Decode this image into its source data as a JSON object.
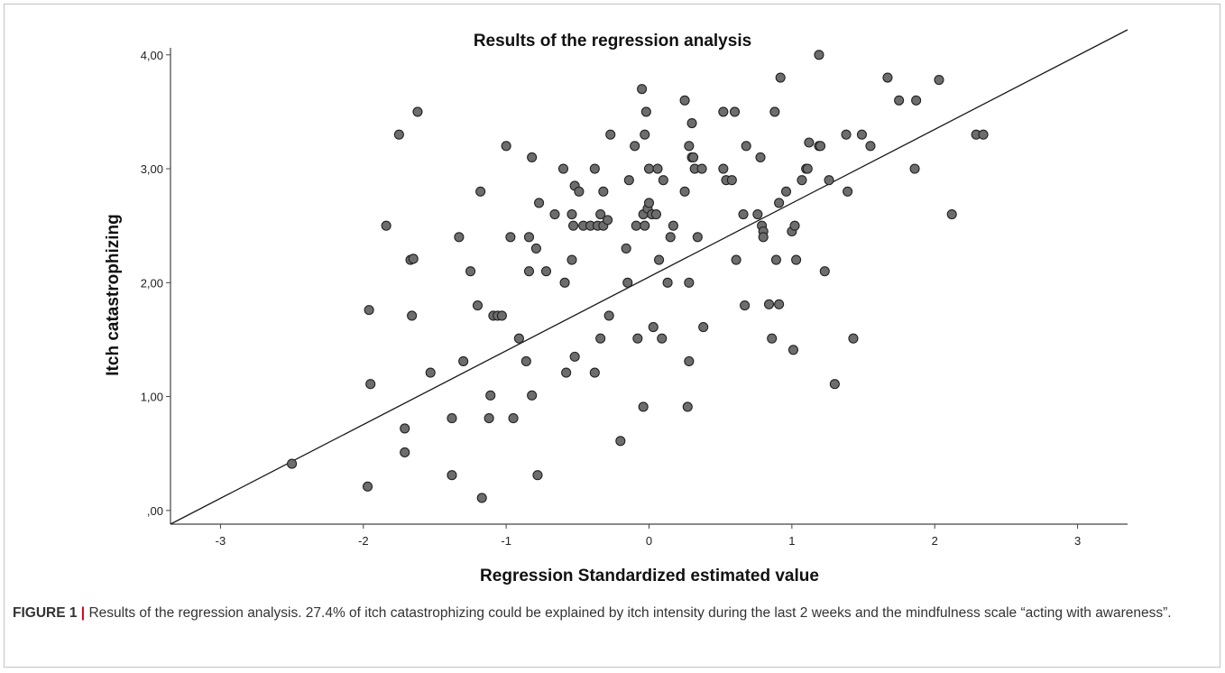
{
  "chart_data": {
    "type": "scatter",
    "title": "Results of the regression analysis",
    "xlabel": "Regression Standardized estimated value",
    "ylabel": "Itch catastrophizing",
    "xlim": [
      -3.35,
      3.35
    ],
    "ylim": [
      -0.12,
      4.22
    ],
    "x_ticks": [
      {
        "value": -3,
        "label": "-3"
      },
      {
        "value": -2,
        "label": "-2"
      },
      {
        "value": -1,
        "label": "-1"
      },
      {
        "value": 0,
        "label": "0"
      },
      {
        "value": 1,
        "label": "1"
      },
      {
        "value": 2,
        "label": "2"
      },
      {
        "value": 3,
        "label": "3"
      }
    ],
    "y_ticks": [
      {
        "value": 0,
        "label": ",00"
      },
      {
        "value": 1,
        "label": "1,00"
      },
      {
        "value": 2,
        "label": "2,00"
      },
      {
        "value": 3,
        "label": "3,00"
      },
      {
        "value": 4,
        "label": "4,00"
      }
    ],
    "grid": false,
    "regression_line": {
      "x": [
        -3.35,
        3.35
      ],
      "y": [
        -0.12,
        4.22
      ]
    },
    "points": [
      [
        -2.5,
        0.41
      ],
      [
        -1.97,
        0.21
      ],
      [
        -1.96,
        1.76
      ],
      [
        -1.95,
        1.11
      ],
      [
        -1.84,
        2.5
      ],
      [
        -1.75,
        3.3
      ],
      [
        -1.71,
        0.72
      ],
      [
        -1.71,
        0.51
      ],
      [
        -1.67,
        2.2
      ],
      [
        -1.66,
        1.71
      ],
      [
        -1.65,
        2.21
      ],
      [
        -1.62,
        3.5
      ],
      [
        -1.53,
        1.21
      ],
      [
        -1.38,
        0.31
      ],
      [
        -1.38,
        0.81
      ],
      [
        -1.33,
        2.4
      ],
      [
        -1.3,
        1.31
      ],
      [
        -1.25,
        2.1
      ],
      [
        -1.2,
        1.8
      ],
      [
        -1.18,
        2.8
      ],
      [
        -1.17,
        0.11
      ],
      [
        -1.12,
        0.81
      ],
      [
        -1.11,
        1.01
      ],
      [
        -1.09,
        1.71
      ],
      [
        -1.06,
        1.71
      ],
      [
        -1.03,
        1.71
      ],
      [
        -1.0,
        3.2
      ],
      [
        -0.97,
        2.4
      ],
      [
        -0.95,
        0.81
      ],
      [
        -0.91,
        1.51
      ],
      [
        -0.86,
        1.31
      ],
      [
        -0.84,
        2.1
      ],
      [
        -0.84,
        2.4
      ],
      [
        -0.82,
        3.1
      ],
      [
        -0.82,
        1.01
      ],
      [
        -0.79,
        2.3
      ],
      [
        -0.78,
        0.31
      ],
      [
        -0.77,
        2.7
      ],
      [
        -0.72,
        2.1
      ],
      [
        -0.66,
        2.6
      ],
      [
        -0.6,
        3.0
      ],
      [
        -0.59,
        2.0
      ],
      [
        -0.58,
        1.21
      ],
      [
        -0.54,
        2.2
      ],
      [
        -0.54,
        2.6
      ],
      [
        -0.53,
        2.5
      ],
      [
        -0.52,
        1.35
      ],
      [
        -0.52,
        2.85
      ],
      [
        -0.49,
        2.8
      ],
      [
        -0.46,
        2.5
      ],
      [
        -0.41,
        2.5
      ],
      [
        -0.38,
        3.0
      ],
      [
        -0.38,
        1.21
      ],
      [
        -0.36,
        2.5
      ],
      [
        -0.34,
        1.51
      ],
      [
        -0.34,
        2.6
      ],
      [
        -0.32,
        2.8
      ],
      [
        -0.32,
        2.5
      ],
      [
        -0.29,
        2.55
      ],
      [
        -0.28,
        1.71
      ],
      [
        -0.27,
        3.3
      ],
      [
        -0.2,
        0.61
      ],
      [
        -0.16,
        2.3
      ],
      [
        -0.15,
        2.0
      ],
      [
        -0.14,
        2.9
      ],
      [
        -0.1,
        3.2
      ],
      [
        -0.09,
        2.5
      ],
      [
        -0.08,
        1.51
      ],
      [
        -0.05,
        3.7
      ],
      [
        -0.04,
        0.91
      ],
      [
        -0.04,
        2.6
      ],
      [
        -0.03,
        2.5
      ],
      [
        -0.03,
        3.3
      ],
      [
        -0.02,
        3.5
      ],
      [
        -0.01,
        2.65
      ],
      [
        0.0,
        2.7
      ],
      [
        0.0,
        3.0
      ],
      [
        0.02,
        2.6
      ],
      [
        0.03,
        1.61
      ],
      [
        0.05,
        2.6
      ],
      [
        0.06,
        3.0
      ],
      [
        0.07,
        2.2
      ],
      [
        0.09,
        1.51
      ],
      [
        0.1,
        2.9
      ],
      [
        0.13,
        2.0
      ],
      [
        0.15,
        2.4
      ],
      [
        0.17,
        2.5
      ],
      [
        0.25,
        3.6
      ],
      [
        0.25,
        2.8
      ],
      [
        0.28,
        2.0
      ],
      [
        0.28,
        1.31
      ],
      [
        0.27,
        0.91
      ],
      [
        0.28,
        3.2
      ],
      [
        0.3,
        3.4
      ],
      [
        0.3,
        3.1
      ],
      [
        0.31,
        3.1
      ],
      [
        0.32,
        3.0
      ],
      [
        0.34,
        2.4
      ],
      [
        0.37,
        3.0
      ],
      [
        0.38,
        1.61
      ],
      [
        0.52,
        3.0
      ],
      [
        0.52,
        3.5
      ],
      [
        0.54,
        2.9
      ],
      [
        0.58,
        2.9
      ],
      [
        0.6,
        3.5
      ],
      [
        0.61,
        2.2
      ],
      [
        0.66,
        2.6
      ],
      [
        0.67,
        1.8
      ],
      [
        0.68,
        3.2
      ],
      [
        0.76,
        2.6
      ],
      [
        0.78,
        3.1
      ],
      [
        0.79,
        2.5
      ],
      [
        0.8,
        2.45
      ],
      [
        0.8,
        2.4
      ],
      [
        0.84,
        1.81
      ],
      [
        0.86,
        1.51
      ],
      [
        0.88,
        3.5
      ],
      [
        0.89,
        2.2
      ],
      [
        0.91,
        1.81
      ],
      [
        0.91,
        2.7
      ],
      [
        0.92,
        3.8
      ],
      [
        0.96,
        2.8
      ],
      [
        1.0,
        2.45
      ],
      [
        1.01,
        1.41
      ],
      [
        1.02,
        2.5
      ],
      [
        1.03,
        2.2
      ],
      [
        1.07,
        2.9
      ],
      [
        1.1,
        3.0
      ],
      [
        1.11,
        3.0
      ],
      [
        1.12,
        3.23
      ],
      [
        1.19,
        4.0
      ],
      [
        1.19,
        3.2
      ],
      [
        1.2,
        3.2
      ],
      [
        1.23,
        2.1
      ],
      [
        1.26,
        2.9
      ],
      [
        1.3,
        1.11
      ],
      [
        1.38,
        3.3
      ],
      [
        1.39,
        2.8
      ],
      [
        1.43,
        1.51
      ],
      [
        1.49,
        3.3
      ],
      [
        1.55,
        3.2
      ],
      [
        1.67,
        3.8
      ],
      [
        1.75,
        3.6
      ],
      [
        1.86,
        3.0
      ],
      [
        1.87,
        3.6
      ],
      [
        2.03,
        3.78
      ],
      [
        2.12,
        2.6
      ],
      [
        2.29,
        3.3
      ],
      [
        2.34,
        3.3
      ]
    ]
  },
  "caption": {
    "label": "FIGURE 1",
    "separator": " | ",
    "text": "Results of the regression analysis. 27.4% of itch catastrophizing could be explained by itch intensity during the last 2 weeks and the mindfulness scale “acting with awareness”."
  },
  "colors": {
    "point_fill": "#6d6d6d",
    "point_stroke": "#222222",
    "axis": "#444444",
    "line": "#1a1a1a",
    "caption_bar": "#d0021b"
  }
}
